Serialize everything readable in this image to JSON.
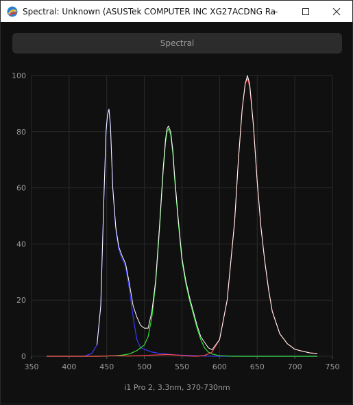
{
  "window": {
    "title": "Spectral: Unknown (ASUSTek COMPUTER INC XG27ACDNG Rac...",
    "controls": [
      "minimize",
      "maximize",
      "close"
    ]
  },
  "tab": {
    "label": "Spectral"
  },
  "footer": {
    "caption": "i1 Pro 2, 3.3nm, 370-730nm"
  },
  "colors": {
    "blue": "#3a3aff",
    "green": "#38e038",
    "red": "#ff4a4a",
    "white": "#ffffff",
    "grid": "#2a2a2a"
  },
  "chart_data": {
    "type": "line",
    "xlim": [
      350,
      750
    ],
    "ylim": [
      0,
      100
    ],
    "x_ticks": [
      350,
      400,
      450,
      500,
      550,
      600,
      650,
      700,
      750
    ],
    "y_ticks": [
      0,
      20,
      40,
      60,
      80,
      100
    ],
    "grid": true,
    "series": [
      {
        "color": "blue",
        "x": [
          370,
          400,
          420,
          430,
          437,
          442,
          446,
          449,
          451,
          453,
          455,
          458,
          462,
          466,
          470,
          475,
          480,
          485,
          490,
          495,
          500,
          505,
          510,
          520,
          530,
          540,
          550,
          560,
          570,
          580,
          600,
          630,
          660,
          700,
          730
        ],
        "y": [
          0,
          0,
          0,
          1,
          4,
          18,
          55,
          80,
          86,
          88,
          82,
          60,
          45,
          38,
          35,
          32,
          24,
          14,
          6,
          3,
          2.5,
          2,
          1.5,
          1,
          0.8,
          0.5,
          0.4,
          0.3,
          0.2,
          0.1,
          0,
          0,
          0,
          0,
          0
        ]
      },
      {
        "color": "green",
        "x": [
          370,
          440,
          460,
          470,
          480,
          490,
          500,
          505,
          510,
          515,
          520,
          525,
          528,
          530,
          532,
          535,
          538,
          540,
          545,
          550,
          555,
          560,
          565,
          570,
          575,
          580,
          585,
          590,
          600,
          620,
          660,
          700,
          730
        ],
        "y": [
          0,
          0,
          0.2,
          0.4,
          0.8,
          2,
          4,
          7,
          14,
          26,
          45,
          66,
          76,
          80,
          81,
          79,
          72,
          64,
          48,
          34,
          26,
          20,
          15,
          10,
          6,
          3,
          1.5,
          0.8,
          0.2,
          0,
          0,
          0,
          0
        ]
      },
      {
        "color": "red",
        "x": [
          370,
          440,
          460,
          480,
          500,
          510,
          520,
          530,
          540,
          550,
          560,
          570,
          580,
          590,
          600,
          610,
          620,
          625,
          630,
          634,
          637,
          640,
          645,
          650,
          655,
          660,
          665,
          670,
          680,
          690,
          700,
          710,
          720,
          730
        ],
        "y": [
          0,
          0,
          0.2,
          0.1,
          0.3,
          0.4,
          0.5,
          0.6,
          0.5,
          0.3,
          0.1,
          0,
          0.3,
          1.5,
          6,
          20,
          48,
          70,
          88,
          97,
          99,
          96,
          82,
          62,
          46,
          34,
          24,
          16,
          8,
          4.5,
          2.5,
          1.8,
          1.2,
          1
        ]
      },
      {
        "color": "white",
        "x": [
          437,
          442,
          446,
          449,
          451,
          453,
          455,
          458,
          462,
          466,
          470,
          475,
          480,
          485,
          490,
          495,
          500,
          505,
          510,
          515,
          520,
          525,
          528,
          530,
          532,
          535,
          538,
          540,
          545,
          550,
          555,
          560,
          565,
          570,
          575,
          580,
          585,
          590,
          600,
          610,
          620,
          625,
          630,
          634,
          637,
          640,
          645,
          650,
          655,
          660,
          665,
          670,
          680,
          690,
          700,
          710,
          720,
          730
        ],
        "y": [
          4,
          18,
          55,
          80,
          86,
          88,
          82,
          60,
          46,
          39,
          36,
          33,
          26,
          18,
          14,
          11,
          10,
          10,
          16,
          27,
          46,
          67,
          77,
          81,
          82,
          80,
          73,
          65,
          49,
          35,
          27,
          21,
          16,
          11,
          7,
          5,
          3,
          2.3,
          6,
          20,
          48,
          70,
          88,
          97,
          100,
          97,
          82,
          62,
          46,
          34,
          24,
          16,
          8,
          4.5,
          2.5,
          1.8,
          1.2,
          1
        ]
      }
    ]
  }
}
